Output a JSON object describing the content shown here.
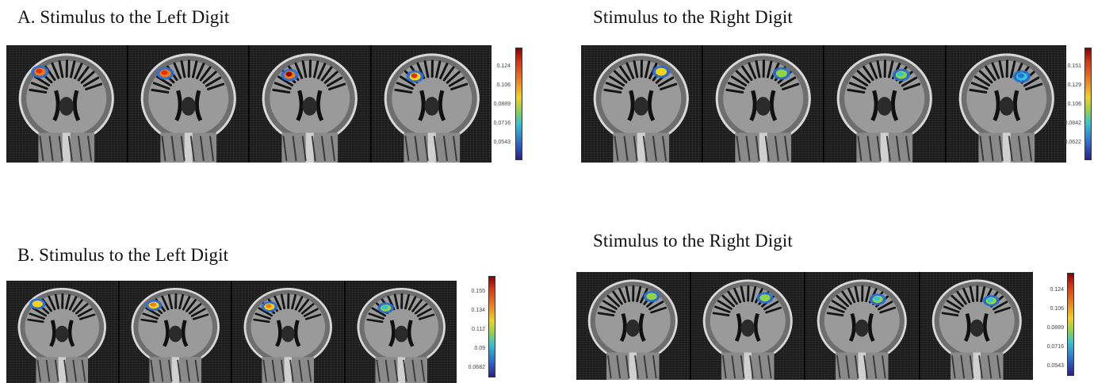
{
  "panel_a": {
    "left_title": "A.  Stimulus to the Left Digit",
    "right_title": "Stimulus to the Right Digit",
    "left_colorbar": [
      "0.124",
      "0.106",
      "0.0889",
      "0.0716",
      "0.0543"
    ],
    "right_colorbar": [
      "0.151",
      "0.129",
      "0.106",
      "0.0842",
      "0.0622"
    ]
  },
  "panel_b": {
    "left_title": "B.  Stimulus to the Left Digit",
    "right_title": "Stimulus to the Right Digit",
    "left_colorbar": [
      "0.155",
      "0.134",
      "0.112",
      "0.09",
      "0.0682"
    ],
    "right_colorbar": [
      "0.124",
      "0.106",
      "0.0889",
      "0.0716",
      "0.0543"
    ]
  },
  "image": {
    "description_tags": [
      "coronal-mri-slice",
      "activation-overlay"
    ],
    "colormap": [
      "#2a1f8c",
      "#2a6fd6",
      "#2fc4d8",
      "#8ed444",
      "#f4d21a",
      "#f07a18",
      "#e03010",
      "#8b0000"
    ],
    "activation_intensity": {
      "a_left": [
        0.85,
        0.85,
        0.95,
        0.8
      ],
      "a_right": [
        0.5,
        0.45,
        0.25,
        0.15
      ],
      "b_left": [
        0.55,
        0.65,
        0.7,
        0.35
      ],
      "b_right": [
        0.45,
        0.4,
        0.35,
        0.3
      ]
    }
  }
}
